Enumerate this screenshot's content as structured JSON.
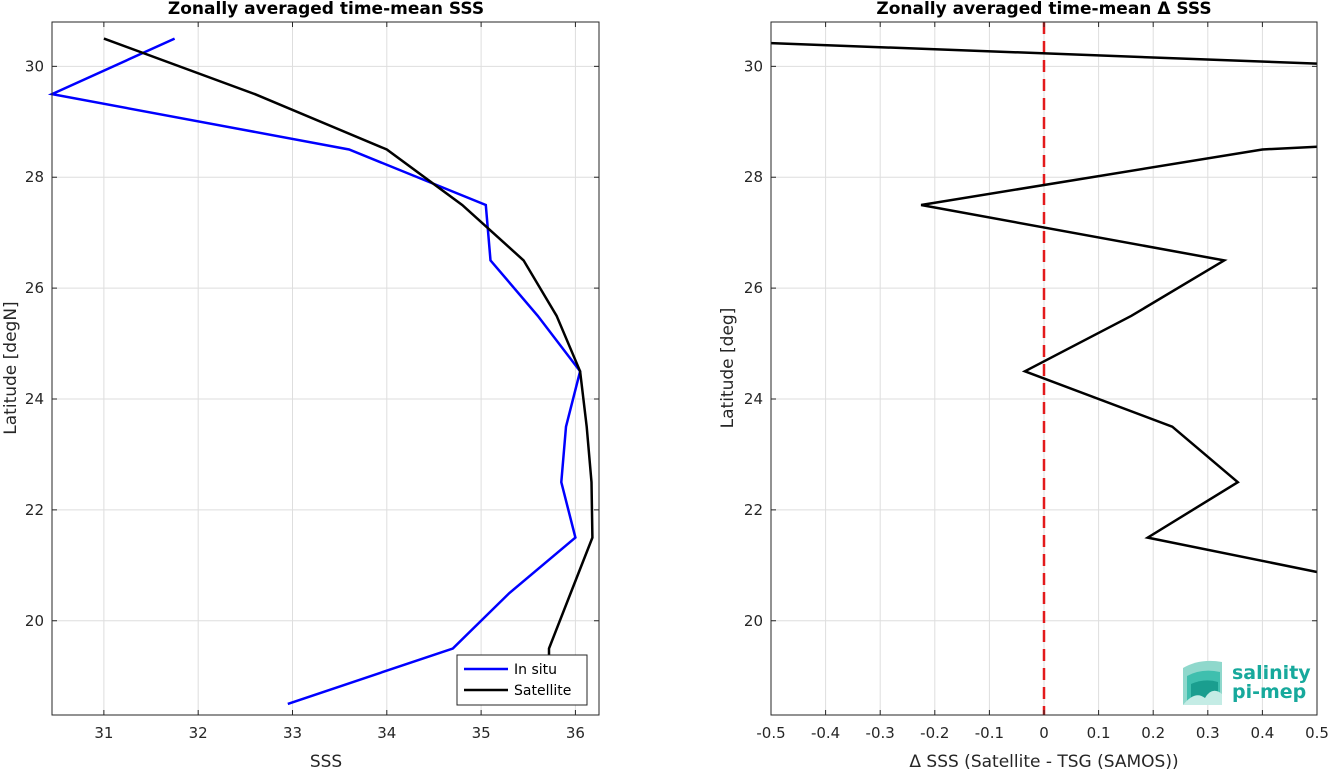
{
  "chart_data": [
    {
      "type": "line",
      "title": "Zonally averaged time-mean SSS",
      "xlabel": "SSS",
      "ylabel": "Latitude [degN]",
      "xlim": [
        30.45,
        36.25
      ],
      "ylim": [
        18.3,
        30.8
      ],
      "xticks": [
        31,
        32,
        33,
        34,
        35,
        36
      ],
      "yticks": [
        20,
        22,
        24,
        26,
        28,
        30
      ],
      "grid": true,
      "legend_position": "bottom-right",
      "series": [
        {
          "name": "In situ",
          "color": "#0000ff",
          "points": [
            {
              "x": 31.75,
              "y": 30.5
            },
            {
              "x": 30.45,
              "y": 29.5
            },
            {
              "x": 33.6,
              "y": 28.5
            },
            {
              "x": 35.05,
              "y": 27.5
            },
            {
              "x": 35.1,
              "y": 26.5
            },
            {
              "x": 35.6,
              "y": 25.5
            },
            {
              "x": 36.05,
              "y": 24.5
            },
            {
              "x": 35.9,
              "y": 23.5
            },
            {
              "x": 35.85,
              "y": 22.5
            },
            {
              "x": 36.0,
              "y": 21.5
            },
            {
              "x": 35.3,
              "y": 20.5
            },
            {
              "x": 34.7,
              "y": 19.5
            },
            {
              "x": 32.95,
              "y": 18.5
            }
          ]
        },
        {
          "name": "Satellite",
          "color": "#000000",
          "points": [
            {
              "x": 31.0,
              "y": 30.5
            },
            {
              "x": 32.6,
              "y": 29.5
            },
            {
              "x": 34.0,
              "y": 28.5
            },
            {
              "x": 34.8,
              "y": 27.5
            },
            {
              "x": 35.45,
              "y": 26.5
            },
            {
              "x": 35.8,
              "y": 25.5
            },
            {
              "x": 36.05,
              "y": 24.5
            },
            {
              "x": 36.12,
              "y": 23.5
            },
            {
              "x": 36.17,
              "y": 22.5
            },
            {
              "x": 36.18,
              "y": 21.5
            },
            {
              "x": 35.95,
              "y": 20.5
            },
            {
              "x": 35.72,
              "y": 19.5
            },
            {
              "x": 35.72,
              "y": 19.35
            }
          ]
        }
      ]
    },
    {
      "type": "line",
      "title": "Zonally averaged time-mean Δ SSS",
      "xlabel": "Δ SSS (Satellite - TSG (SAMOS))",
      "ylabel": "Latitude [deg]",
      "xlim": [
        -0.5,
        0.5
      ],
      "ylim": [
        18.3,
        30.8
      ],
      "xticks": [
        -0.5,
        -0.4,
        -0.3,
        -0.2,
        -0.1,
        0,
        0.1,
        0.2,
        0.3,
        0.4,
        0.5
      ],
      "yticks": [
        20,
        22,
        24,
        26,
        28,
        30
      ],
      "grid": true,
      "reference_line": {
        "x": 0,
        "color": "#e31a1c",
        "style": "dashed"
      },
      "series": [
        {
          "color": "#000000",
          "points": [
            {
              "x": -0.5,
              "y": 30.42
            },
            {
              "x": 0.5,
              "y": 30.05
            },
            {
              "x": null,
              "y": null
            },
            {
              "x": 0.5,
              "y": 28.55
            },
            {
              "x": 0.4,
              "y": 28.5
            },
            {
              "x": -0.225,
              "y": 27.5
            },
            {
              "x": 0.33,
              "y": 26.5
            },
            {
              "x": 0.16,
              "y": 25.5
            },
            {
              "x": -0.035,
              "y": 24.5
            },
            {
              "x": 0.235,
              "y": 23.5
            },
            {
              "x": 0.355,
              "y": 22.5
            },
            {
              "x": 0.19,
              "y": 21.5
            },
            {
              "x": 0.5,
              "y": 20.88
            }
          ]
        }
      ]
    }
  ],
  "logo": {
    "line1": "salinity",
    "line2": "pi-mep",
    "color": "#17a99c"
  }
}
